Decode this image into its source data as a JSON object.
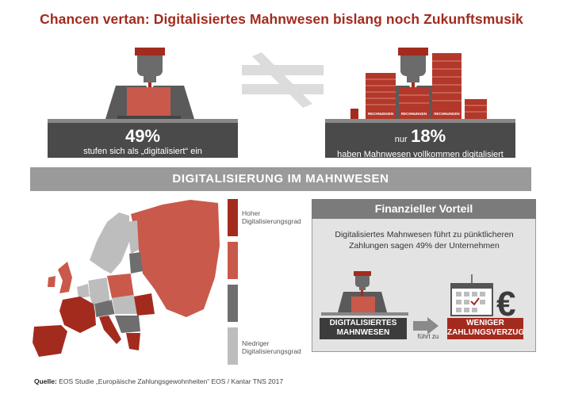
{
  "title": "Chancen vertan: Digitalisiertes Mahnwesen bislang noch Zukunftsmusik",
  "stat_left": {
    "value": "49%",
    "text": "stufen sich als „digitalisiert“ ein"
  },
  "stat_right": {
    "prefix": "nur",
    "value": "18%",
    "text": "haben Mahnwesen vollkommen digitalisiert"
  },
  "stack_labels": [
    "RECHNUNGEN",
    "RECHNUNGEN",
    "RECHNUNGEN"
  ],
  "banner": "DIGITALISIERUNG IM MAHNWESEN",
  "legend": {
    "high": "Hoher Digitalisierungsgrad",
    "low": "Niedriger Digitalisierungsgrad",
    "colors": [
      "#a32b1e",
      "#c9594b",
      "#6e6e6e",
      "#bdbdbd"
    ]
  },
  "panel": {
    "heading": "Finanzieller Vorteil",
    "text": "Digitalisiertes Mahnwesen führt zu pünktlicheren Zahlungen sagen 49% der Unternehmen",
    "left_label": "DIGITALISIERTES MAHNWESEN",
    "arrow_label": "führt zu",
    "right_label": "WENIGER ZAHLUNGSVERZUG"
  },
  "source": {
    "label": "Quelle:",
    "text": "EOS Studie „Europäische Zahlungsgewohnheiten“ EOS / Kantar TNS 2017"
  },
  "chart_data": {
    "type": "table",
    "title": "Chancen vertan: Digitalisiertes Mahnwesen bislang noch Zukunftsmusik",
    "categories": [
      "stufen sich als „digitalisiert“ ein",
      "haben Mahnwesen vollkommen digitalisiert"
    ],
    "values": [
      49,
      18
    ],
    "unit": "%",
    "annotations": [
      "Digitalisiertes Mahnwesen führt zu pünktlicheren Zahlungen sagen 49% der Unternehmen"
    ]
  },
  "colors": {
    "accent": "#a32b1e",
    "dark": "#4a4a4a",
    "grey": "#9a9a9a"
  }
}
